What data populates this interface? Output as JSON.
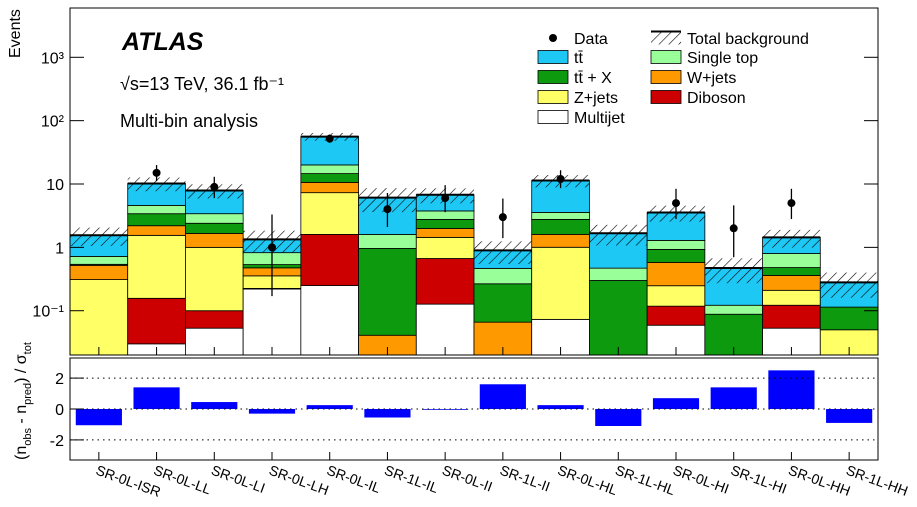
{
  "chart_data": {
    "type": "bar",
    "stacked": true,
    "log_scale": true,
    "ylabel": "Events",
    "experiment": "ATLAS",
    "energy_lumi": "√s=13 TeV, 36.1 fb⁻¹",
    "analysis": "Multi-bin analysis",
    "categories": [
      "SR-0L-ISR",
      "SR-0L-LL",
      "SR-0L-LI",
      "SR-0L-LH",
      "SR-0L-IL",
      "SR-1L-IL",
      "SR-0L-II",
      "SR-1L-II",
      "SR-0L-HL",
      "SR-1L-HL",
      "SR-0L-HI",
      "SR-1L-HI",
      "SR-0L-HH",
      "SR-1L-HH"
    ],
    "series": [
      {
        "name": "Multijet",
        "color": "#ffffff",
        "values": [
          0,
          0.03,
          0.053,
          0.22,
          0.25,
          0,
          0.127,
          0,
          0.073,
          0,
          0.059,
          0,
          0.053,
          0
        ]
      },
      {
        "name": "Diboson",
        "color": "#cc0000",
        "values": [
          0,
          0.127,
          0.047,
          0.005,
          1.35,
          0,
          0.54,
          0,
          0,
          0,
          0.059,
          0,
          0.069,
          0
        ]
      },
      {
        "name": "Z+jets",
        "color": "#ffff66",
        "values": [
          0.31,
          1.39,
          0.9,
          0.13,
          5.7,
          0,
          0.77,
          0,
          0.93,
          0,
          0.13,
          0,
          0.088,
          0.05
        ]
      },
      {
        "name": "W+jets",
        "color": "#ff9900",
        "values": [
          0.21,
          0.65,
          0.66,
          0.12,
          3.3,
          0.041,
          0.55,
          0.066,
          0.6,
          0,
          0.33,
          0,
          0.15,
          0
        ]
      },
      {
        "name": "tt̄ + X",
        "color": "#0e9a0e",
        "values": [
          0.02,
          1.2,
          0.74,
          0.06,
          4.0,
          0.92,
          0.77,
          0.2,
          1.16,
          0.3,
          0.35,
          0.088,
          0.12,
          0.064
        ]
      },
      {
        "name": "Single top",
        "color": "#99ff99",
        "values": [
          0.18,
          1.2,
          1.0,
          0.29,
          5.4,
          0.64,
          1.0,
          0.2,
          0.8,
          0.17,
          0.36,
          0.034,
          0.32,
          0
        ]
      },
      {
        "name": "tt̄",
        "color": "#1ec8f5",
        "values": [
          0.83,
          5.6,
          4.5,
          0.51,
          36,
          4.5,
          3.0,
          0.43,
          7.8,
          1.2,
          2.26,
          0.35,
          0.64,
          0.166
        ]
      }
    ],
    "data": {
      "name": "Data",
      "color": "#000000",
      "values": [
        null,
        15,
        9,
        1,
        52,
        4,
        6,
        3,
        12,
        null,
        5,
        2,
        5,
        null
      ],
      "errors_low": [
        null,
        3.9,
        3,
        0.83,
        7.2,
        1.9,
        2.4,
        1.6,
        3.4,
        null,
        2.2,
        1.3,
        2.2,
        null
      ],
      "errors_high": [
        null,
        4.9,
        4,
        2.3,
        8.2,
        3.2,
        3.6,
        2.9,
        4.5,
        null,
        3.4,
        2.6,
        3.4,
        null
      ]
    },
    "total_background": {
      "name": "Total background",
      "errors": [
        0.5,
        2.5,
        2.0,
        0.5,
        8,
        2.5,
        1.8,
        0.35,
        2.5,
        0.6,
        1.0,
        0.2,
        0.45,
        0.12
      ]
    },
    "ylim": [
      0.02,
      6000
    ],
    "yticks": [
      {
        "value": 0.1,
        "label": "10⁻¹"
      },
      1,
      10,
      {
        "value": 100,
        "label": "10²"
      },
      {
        "value": 1000,
        "label": "10³"
      }
    ],
    "ratio": {
      "ylabel_parts": [
        "(n",
        "obs",
        " - n",
        "pred",
        ") / σ",
        "tot"
      ],
      "color": "#0000ff",
      "values": [
        -1.05,
        1.4,
        0.45,
        -0.3,
        0.25,
        -0.55,
        -0.05,
        1.6,
        0.25,
        -1.1,
        0.7,
        1.4,
        2.5,
        -0.9
      ],
      "ylim": [
        -3.3,
        3.3
      ],
      "yticks": [
        -2,
        0,
        2
      ],
      "grid": true
    }
  }
}
